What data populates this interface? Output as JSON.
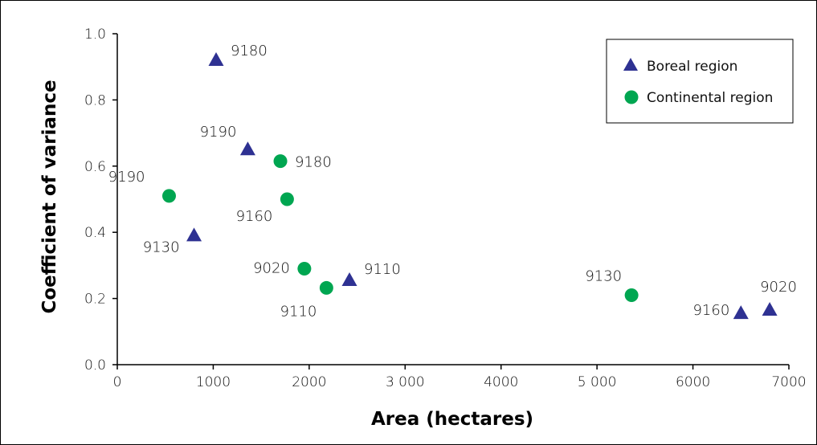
{
  "chart_data": {
    "type": "scatter",
    "xlabel": "Area (hectares)",
    "ylabel": "Coefficient of variance",
    "xlim": [
      0,
      7000
    ],
    "ylim": [
      0,
      1.0
    ],
    "x_ticks": [
      "0",
      "1000",
      "2000",
      "3 000",
      "4000",
      "5 000",
      "6000",
      "7000"
    ],
    "y_ticks": [
      "0.0",
      "0.2",
      "0.4",
      "0.6",
      "0.8",
      "1.0"
    ],
    "grid": false,
    "legend_position": "top-right",
    "series": [
      {
        "name": "Boreal region",
        "marker": "triangle",
        "color": "#2e3192",
        "points": [
          {
            "label": "9180",
            "x": 1030,
            "y": 0.92
          },
          {
            "label": "9190",
            "x": 1360,
            "y": 0.65
          },
          {
            "label": "9130",
            "x": 800,
            "y": 0.39
          },
          {
            "label": "9110",
            "x": 2420,
            "y": 0.255
          },
          {
            "label": "9160",
            "x": 6500,
            "y": 0.155
          },
          {
            "label": "9020",
            "x": 6800,
            "y": 0.165
          }
        ]
      },
      {
        "name": "Continental region",
        "marker": "circle",
        "color": "#00a651",
        "points": [
          {
            "label": "9180",
            "x": 1700,
            "y": 0.615
          },
          {
            "label": "9190",
            "x": 540,
            "y": 0.51
          },
          {
            "label": "9160",
            "x": 1770,
            "y": 0.5
          },
          {
            "label": "9020",
            "x": 1950,
            "y": 0.29
          },
          {
            "label": "9110",
            "x": 2180,
            "y": 0.232
          },
          {
            "label": "9130",
            "x": 5360,
            "y": 0.21
          }
        ]
      }
    ]
  }
}
